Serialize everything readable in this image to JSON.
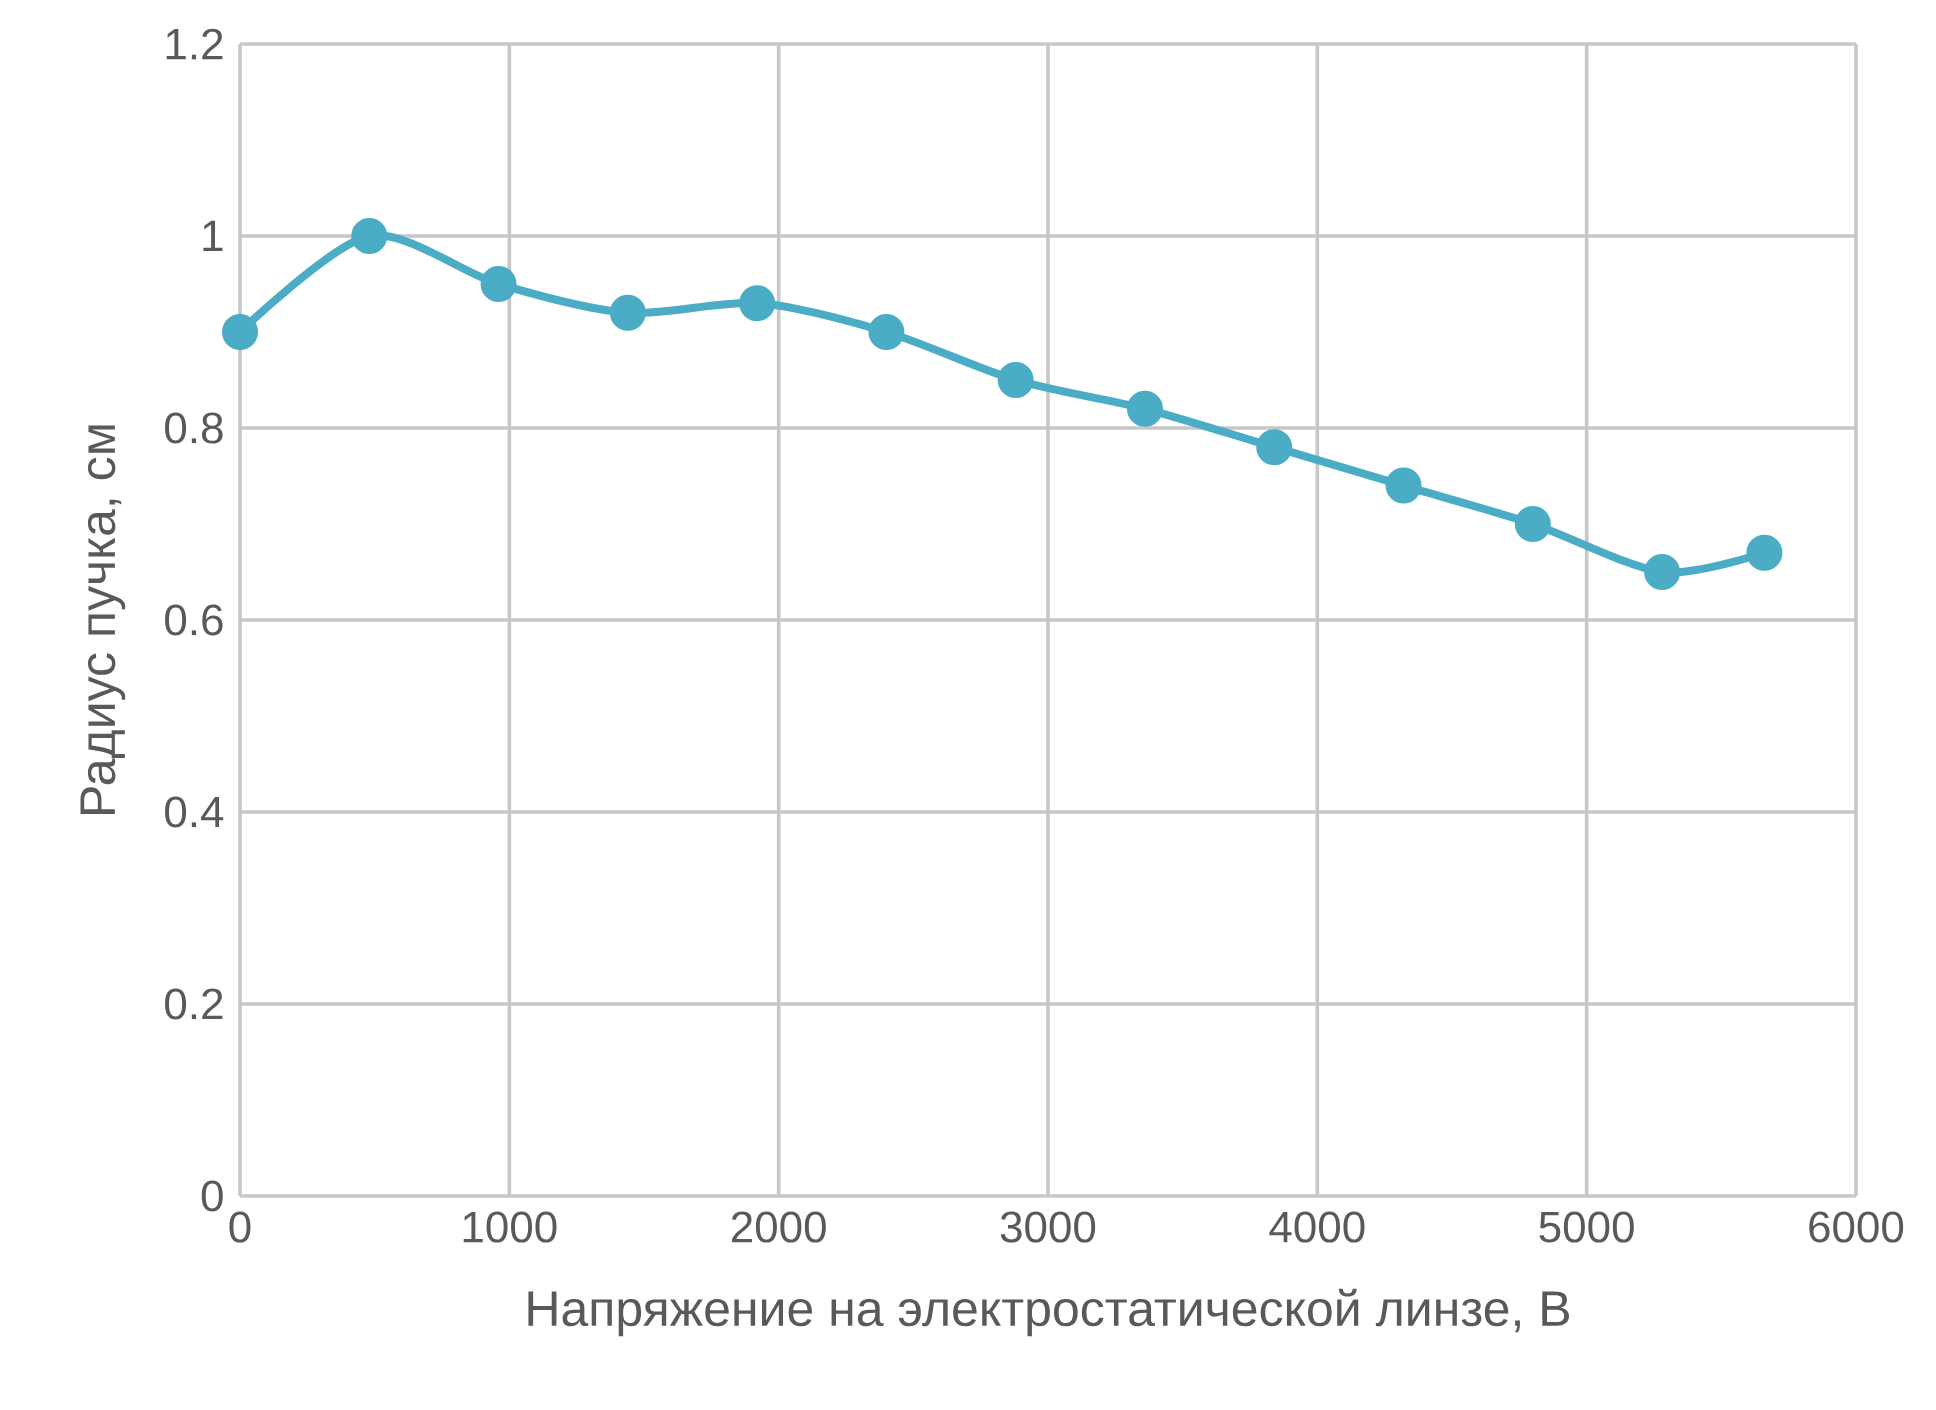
{
  "chart_data": {
    "type": "line",
    "xlabel": "Напряжение на электростатической линзе, В",
    "ylabel": "Радиус пучка, см",
    "x": [
      0,
      480,
      960,
      1440,
      1920,
      2400,
      2880,
      3360,
      3840,
      4320,
      4800,
      5280,
      5660
    ],
    "series": [
      {
        "color": "#4bacc6",
        "values": [
          0.9,
          1.0,
          0.95,
          0.92,
          0.93,
          0.9,
          0.85,
          0.82,
          0.78,
          0.74,
          0.7,
          0.65,
          0.67
        ]
      }
    ],
    "xlim": [
      0,
      6000
    ],
    "xticks": [
      0,
      1000,
      2000,
      3000,
      4000,
      5000,
      6000
    ],
    "ylim": [
      0,
      1.2
    ],
    "yticks": [
      0,
      0.2,
      0.4,
      0.6,
      0.8,
      1,
      1.2
    ],
    "grid": true,
    "marker": "circle",
    "line_style": "solid"
  }
}
